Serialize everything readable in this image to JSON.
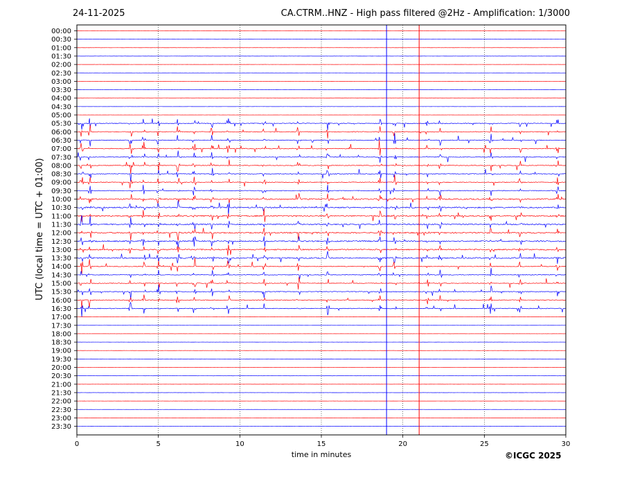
{
  "header": {
    "date": "24-11-2025",
    "title": "CA.CTRM..HNZ - High pass filtered @2Hz - Amplification: 1/3000"
  },
  "footer": {
    "copyright": "©ICGC 2025"
  },
  "chart_data": {
    "type": "line",
    "title": "CA.CTRM..HNZ - High pass filtered @2Hz - Amplification: 1/3000",
    "xlabel": "time in minutes",
    "ylabel": "UTC (local time = UTC + 01:00)",
    "xlim": [
      0,
      30
    ],
    "xticks": [
      0,
      5,
      10,
      15,
      20,
      25,
      30
    ],
    "grid": "vertical dotted lines at every 5 minutes",
    "row_labels": [
      "00:00",
      "00:30",
      "01:00",
      "01:30",
      "02:00",
      "02:30",
      "03:00",
      "03:30",
      "04:00",
      "04:30",
      "05:00",
      "05:30",
      "06:00",
      "06:30",
      "07:00",
      "07:30",
      "08:00",
      "08:30",
      "09:00",
      "09:30",
      "10:00",
      "10:30",
      "11:00",
      "11:30",
      "12:00",
      "12:30",
      "13:00",
      "13:30",
      "14:00",
      "14:30",
      "15:00",
      "15:30",
      "16:00",
      "16:30",
      "17:00",
      "17:30",
      "18:00",
      "18:30",
      "19:00",
      "19:30",
      "20:00",
      "20:30",
      "21:00",
      "21:30",
      "22:00",
      "22:30",
      "23:00",
      "23:30"
    ],
    "series_colors": [
      "#ff0000",
      "#0000ff"
    ],
    "markers_minutes": [
      19.0,
      21.0
    ],
    "events": [
      {
        "x": 0.3,
        "amp": 3.0
      },
      {
        "x": 0.8,
        "amp": 3.2
      },
      {
        "x": 3.3,
        "amp": 3.0
      },
      {
        "x": 4.1,
        "amp": 2.6
      },
      {
        "x": 5.0,
        "amp": 2.5
      },
      {
        "x": 6.2,
        "amp": 2.8
      },
      {
        "x": 7.2,
        "amp": 2.5
      },
      {
        "x": 8.3,
        "amp": 2.2
      },
      {
        "x": 9.3,
        "amp": 3.0
      },
      {
        "x": 11.5,
        "amp": 2.6
      },
      {
        "x": 13.6,
        "amp": 2.8
      },
      {
        "x": 15.4,
        "amp": 2.6
      },
      {
        "x": 18.6,
        "amp": 2.3
      },
      {
        "x": 19.5,
        "amp": 2.5
      },
      {
        "x": 21.5,
        "amp": 2.0
      },
      {
        "x": 22.3,
        "amp": 2.0
      },
      {
        "x": 25.4,
        "amp": 2.6
      },
      {
        "x": 27.2,
        "amp": 2.0
      },
      {
        "x": 29.5,
        "amp": 2.5
      }
    ],
    "noisy_rows": {
      "start": 11,
      "end": 33,
      "peak_rows": [
        20,
        21,
        22,
        23,
        24,
        25,
        26,
        27
      ]
    }
  }
}
